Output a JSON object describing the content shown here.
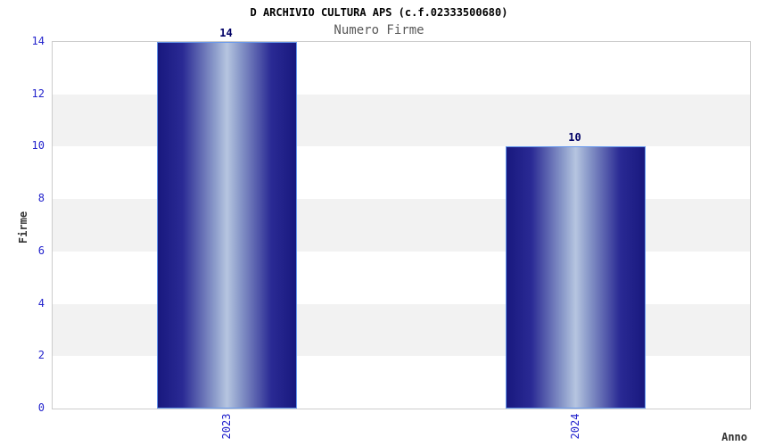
{
  "chart_data": {
    "type": "bar",
    "title": "D ARCHIVIO CULTURA APS (c.f.02333500680)",
    "subtitle": "Numero Firme",
    "xlabel": "Anno",
    "ylabel": "Firme",
    "categories": [
      "2023",
      "2024"
    ],
    "values": [
      14,
      10
    ],
    "bar_value_labels": [
      "14",
      "10"
    ],
    "ylim": [
      0,
      14
    ],
    "ytick_step": 2,
    "yticks": [
      0,
      2,
      4,
      6,
      8,
      10,
      12,
      14
    ],
    "grid": "alternating horizontal bands every 2 units",
    "legend_position": "none"
  },
  "colors": {
    "background": "#ffffff",
    "title": "#000000",
    "subtitle": "#595959",
    "tick_label": "#2222cc",
    "value_label": "#000066",
    "axis_label": "#333333",
    "band": "#f2f2f2",
    "plot_border": "#cccccc",
    "bar_border": "#6699ee",
    "bar_gradient_dark": "#18187e",
    "bar_gradient_mid": "#2a2a94",
    "bar_gradient_light": "#b6c5e0"
  }
}
